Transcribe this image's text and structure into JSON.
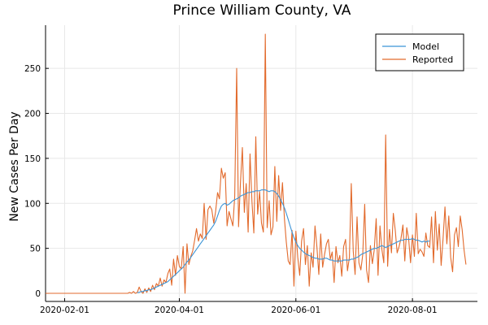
{
  "chart_data": {
    "type": "line",
    "title": "Prince William County, VA",
    "xlabel": "",
    "ylabel": "New Cases Per Day",
    "x_start": "2020-01-22",
    "x_end": "2020-09-04",
    "x_ticks": [
      "2020-02-01",
      "2020-04-01",
      "2020-06-01",
      "2020-08-01"
    ],
    "y_ticks": [
      0,
      50,
      100,
      150,
      200,
      250
    ],
    "ylim": [
      -9,
      298
    ],
    "grid": true,
    "legend_position": "top-right",
    "series": [
      {
        "name": "Model",
        "color": "#3a93d6",
        "start_date": "2020-03-10",
        "values": [
          1,
          1,
          2,
          2,
          3,
          3,
          4,
          4,
          5,
          6,
          7,
          8,
          9,
          10,
          11,
          12,
          13,
          15,
          17,
          19,
          21,
          23,
          25,
          27,
          29,
          32,
          35,
          37,
          40,
          43,
          46,
          49,
          52,
          55,
          58,
          61,
          64,
          67,
          70,
          73,
          76,
          80,
          86,
          92,
          97,
          99,
          100,
          98,
          99,
          101,
          103,
          104,
          105,
          106,
          108,
          109,
          110,
          111,
          112,
          112,
          113,
          113,
          114,
          114,
          114,
          115,
          115,
          115,
          114,
          113,
          114,
          114,
          113,
          111,
          108,
          104,
          100,
          95,
          89,
          82,
          75,
          68,
          62,
          57,
          53,
          50,
          48,
          46,
          44,
          43,
          42,
          41,
          40,
          39,
          39,
          38,
          38,
          38,
          39,
          39,
          38,
          37,
          37,
          36,
          36,
          36,
          36,
          36,
          37,
          37,
          37,
          37,
          38,
          38,
          39,
          40,
          41,
          43,
          44,
          45,
          46,
          47,
          48,
          49,
          50,
          50,
          51,
          52,
          53,
          52,
          51,
          52,
          53,
          54,
          55,
          56,
          57,
          58,
          59,
          59,
          60,
          60,
          60,
          60,
          61,
          60,
          59,
          59,
          58,
          57,
          58,
          57,
          58,
          58
        ]
      },
      {
        "name": "Reported",
        "color": "#e26a2c",
        "start_date": "2020-01-22",
        "values": [
          0,
          0,
          0,
          0,
          0,
          0,
          0,
          0,
          0,
          0,
          0,
          0,
          0,
          0,
          0,
          0,
          0,
          0,
          0,
          0,
          0,
          0,
          0,
          0,
          0,
          0,
          0,
          0,
          0,
          0,
          0,
          0,
          0,
          0,
          0,
          0,
          0,
          0,
          0,
          0,
          0,
          0,
          0,
          0,
          1,
          0,
          2,
          0,
          1,
          7,
          2,
          0,
          5,
          1,
          6,
          2,
          9,
          4,
          11,
          8,
          17,
          8,
          15,
          12,
          22,
          27,
          9,
          38,
          20,
          42,
          30,
          27,
          52,
          0,
          55,
          32,
          41,
          47,
          59,
          72,
          58,
          66,
          61,
          100,
          60,
          93,
          97,
          93,
          78,
          91,
          112,
          105,
          139,
          128,
          134,
          75,
          91,
          83,
          75,
          108,
          250,
          74,
          124,
          162,
          90,
          122,
          68,
          155,
          102,
          67,
          174,
          88,
          113,
          78,
          68,
          288,
          73,
          103,
          65,
          74,
          141,
          80,
          131,
          92,
          123,
          83,
          57,
          36,
          32,
          70,
          8,
          69,
          40,
          20,
          58,
          72,
          32,
          53,
          8,
          45,
          29,
          75,
          52,
          21,
          66,
          29,
          43,
          55,
          60,
          38,
          46,
          12,
          52,
          34,
          42,
          19,
          52,
          60,
          25,
          40,
          122,
          47,
          21,
          85,
          34,
          26,
          43,
          99,
          26,
          12,
          53,
          33,
          48,
          83,
          20,
          75,
          49,
          34,
          176,
          30,
          71,
          45,
          89,
          70,
          45,
          52,
          61,
          76,
          36,
          73,
          61,
          34,
          65,
          41,
          89,
          44,
          49,
          46,
          41,
          67,
          53,
          51,
          85,
          34,
          91,
          48,
          77,
          31,
          60,
          96,
          55,
          86,
          40,
          24,
          65,
          73,
          52,
          86,
          71,
          48,
          32
        ]
      }
    ]
  }
}
